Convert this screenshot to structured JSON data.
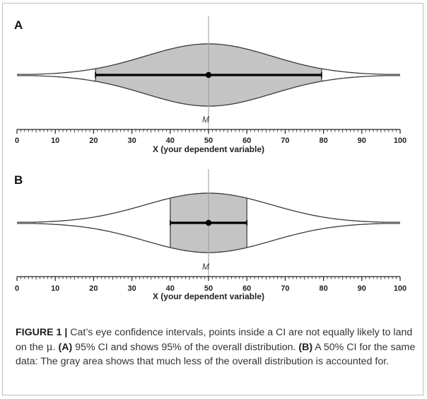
{
  "chart_data": [
    {
      "panel": "A",
      "type": "area",
      "xlim": [
        0,
        100
      ],
      "x_ticks": [
        0,
        10,
        20,
        30,
        40,
        50,
        60,
        70,
        80,
        90,
        100
      ],
      "xlabel": "X (your dependent variable)",
      "mean_label": "M",
      "mean": 50,
      "ci_lower": 20.5,
      "ci_upper": 79.5,
      "ci_level": "95%"
    },
    {
      "panel": "B",
      "type": "area",
      "xlim": [
        0,
        100
      ],
      "x_ticks": [
        0,
        10,
        20,
        30,
        40,
        50,
        60,
        70,
        80,
        90,
        100
      ],
      "xlabel": "X (your dependent variable)",
      "mean_label": "M",
      "mean": 50,
      "ci_lower": 40,
      "ci_upper": 60,
      "ci_level": "50%"
    }
  ],
  "caption": {
    "figure_label": "FIGURE 1 |",
    "line1_text": " Cat’s eye confidence intervals, points inside a CI are not equally likely to land on the ",
    "mu": "μ",
    "line1_end": ". ",
    "a_label": "(A)",
    "a_text": " 95% CI and shows 95% of the overall distribution. ",
    "b_label": "(B)",
    "b_text": " A 50% CI for the same data: The gray area shows that much less of the overall distribution is accounted for."
  },
  "colors": {
    "ci_fill": "#c4c4c4",
    "outline": "#3a3a3a",
    "mean_line": "#9a9a9a"
  }
}
